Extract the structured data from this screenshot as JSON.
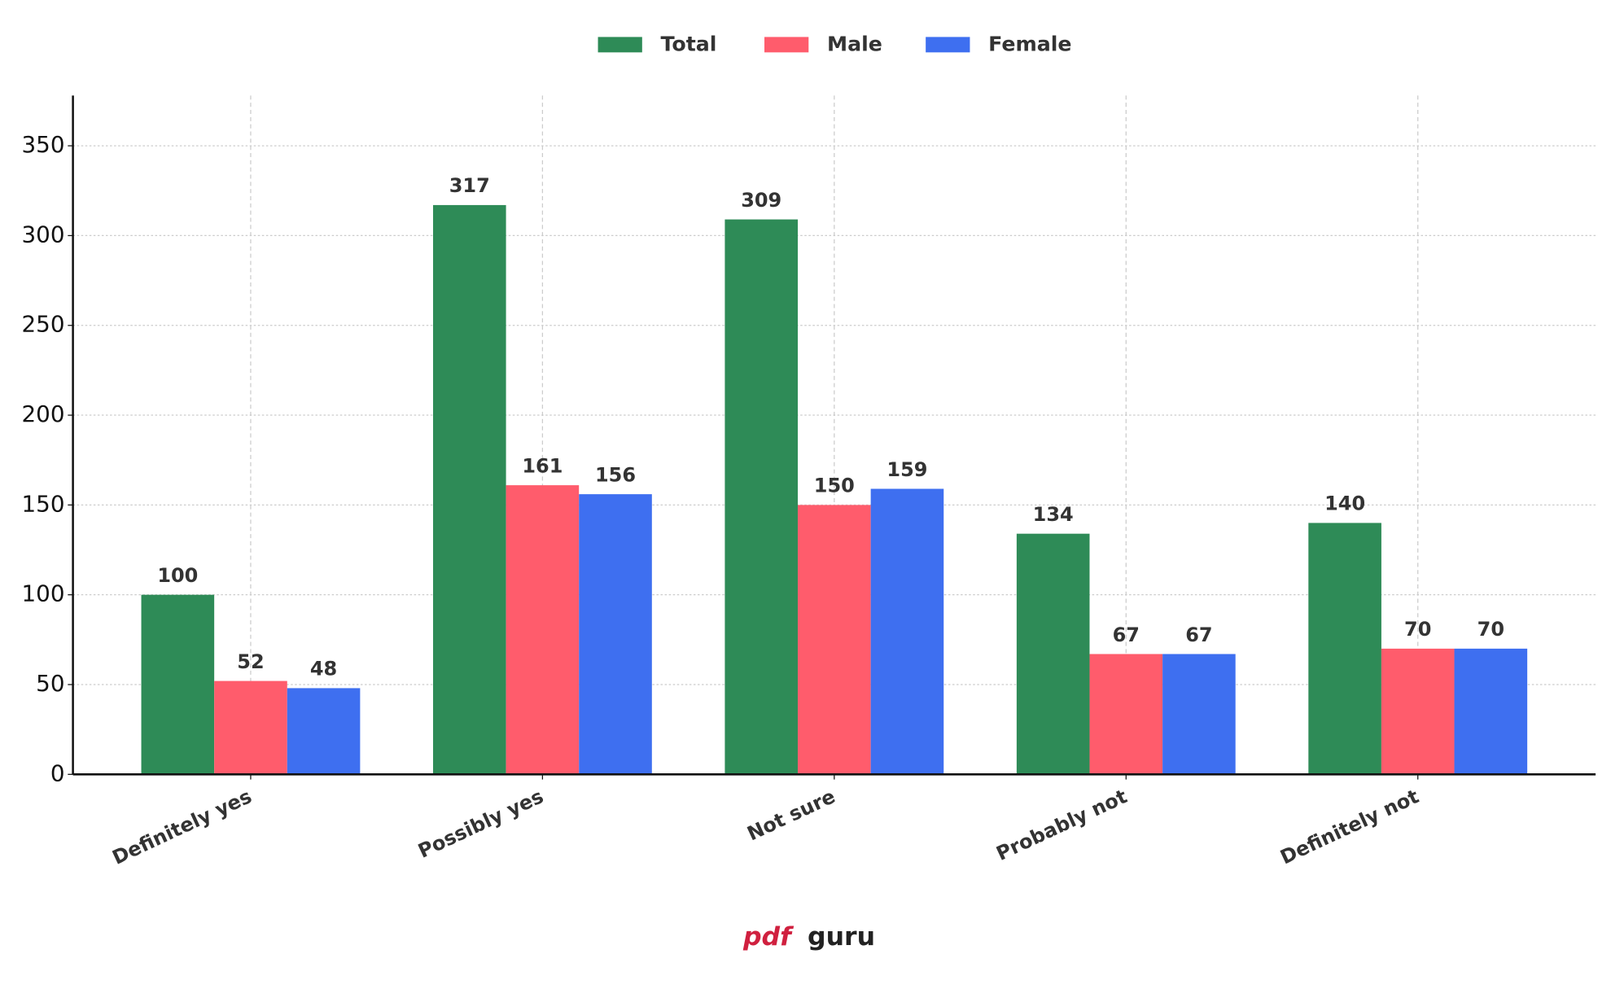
{
  "chart_data": {
    "type": "bar",
    "categories": [
      "Definitely yes",
      "Possibly yes",
      "Not sure",
      "Probably not",
      "Definitely not"
    ],
    "series": [
      {
        "name": "Total",
        "color": "#2e8b57",
        "values": [
          100,
          317,
          309,
          134,
          140
        ]
      },
      {
        "name": "Male",
        "color": "#ff5c6c",
        "values": [
          52,
          161,
          150,
          67,
          70
        ]
      },
      {
        "name": "Female",
        "color": "#3e6ff0",
        "values": [
          48,
          156,
          159,
          67,
          70
        ]
      }
    ],
    "ylim": [
      0,
      378
    ],
    "yticks": [
      0,
      50,
      100,
      150,
      200,
      250,
      300,
      350
    ],
    "grid": true,
    "legend": "top"
  },
  "watermark": [
    "pdf",
    "guru"
  ]
}
